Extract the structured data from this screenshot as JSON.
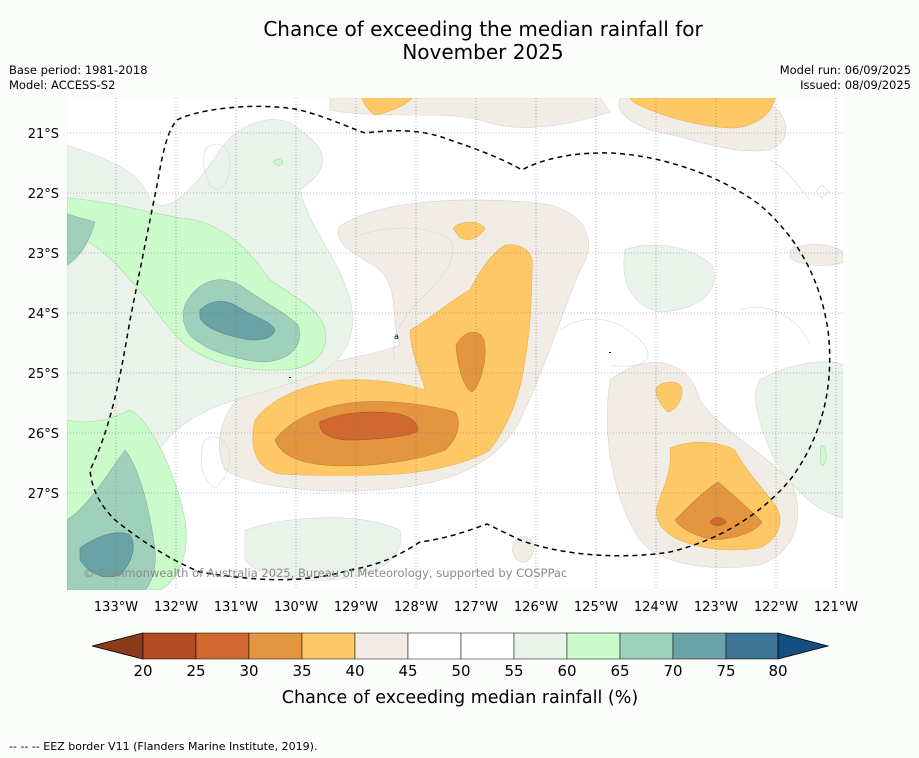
{
  "header": {
    "title_line1": "Chance of exceeding the median rainfall for",
    "title_line2": "November 2025",
    "base_period": "Base period: 1981-2018",
    "model": "Model: ACCESS-S2",
    "model_run": "Model run: 06/09/2025",
    "issued": "Issued: 08/09/2025"
  },
  "map": {
    "copyright": "© Commonwealth of Australia 2025, Bureau of Meteorology, supported by COSPPac",
    "lat_labels": [
      "21°S",
      "22°S",
      "23°S",
      "24°S",
      "25°S",
      "26°S",
      "27°S"
    ],
    "lon_labels": [
      "133°W",
      "132°W",
      "131°W",
      "130°W",
      "129°W",
      "128°W",
      "127°W",
      "126°W",
      "125°W",
      "124°W",
      "123°W",
      "122°W",
      "121°W"
    ],
    "small_mark": "a"
  },
  "colorbar": {
    "tick_labels": [
      "20",
      "25",
      "30",
      "35",
      "40",
      "45",
      "50",
      "55",
      "60",
      "65",
      "70",
      "75",
      "80"
    ],
    "label": "Chance of exceeding median rainfall (%)",
    "colors": [
      "#8c3a1c",
      "#b24a24",
      "#d06830",
      "#e3953f",
      "#fdc865",
      "#f2ece6",
      "#ffffff",
      "#ffffff",
      "#eaf3ea",
      "#cbfbcb",
      "#9fd0bb",
      "#6aa3a5",
      "#3d7495",
      "#154e80"
    ]
  },
  "footer": {
    "legend_text": "--  --  -- EEZ border V11 (Flanders Marine Institute, 2019)."
  }
}
